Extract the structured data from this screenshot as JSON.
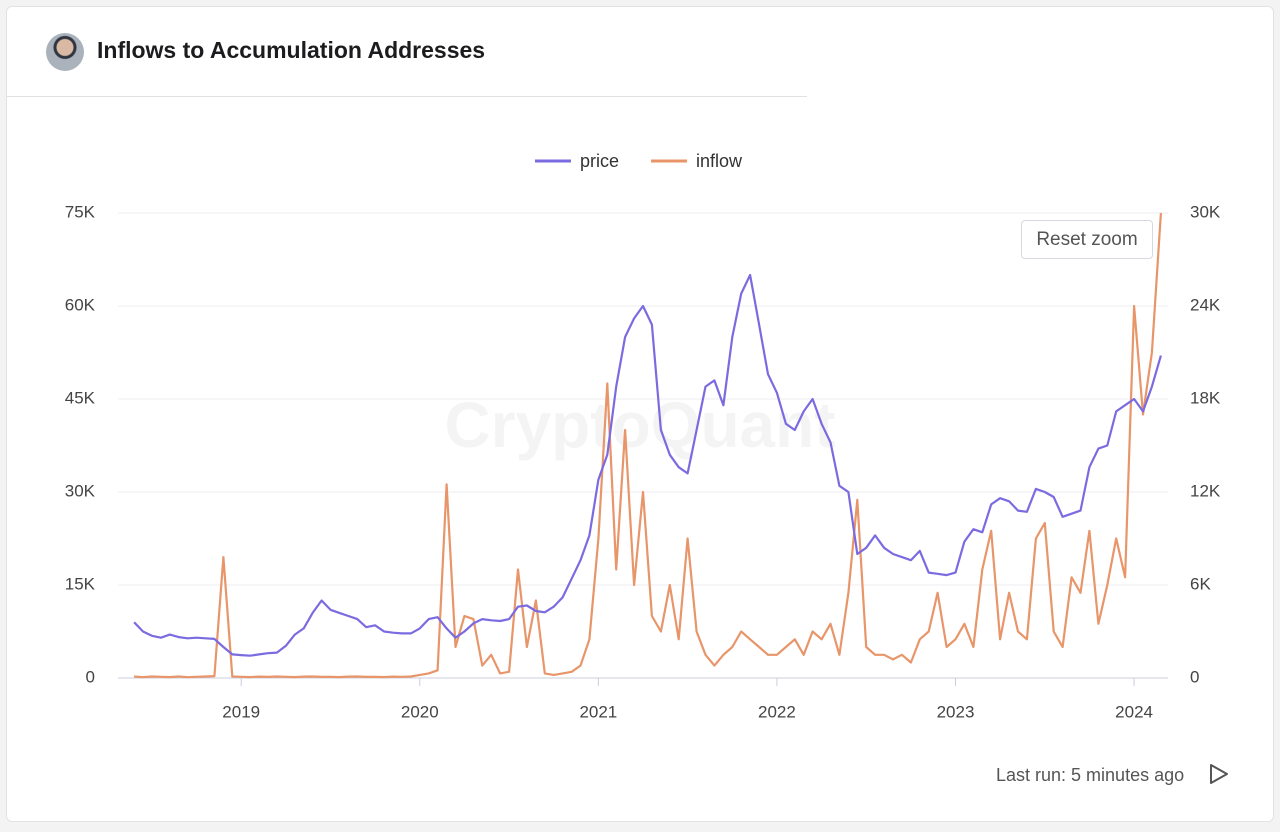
{
  "header": {
    "title": "Inflows to Accumulation Addresses"
  },
  "controls": {
    "reset": "Reset zoom"
  },
  "footer": {
    "last_run": "Last run: 5 minutes ago"
  },
  "watermark": "CryptoQuant",
  "chart_data": {
    "type": "line",
    "x": [
      2018.4,
      2018.45,
      2018.5,
      2018.55,
      2018.6,
      2018.65,
      2018.7,
      2018.75,
      2018.8,
      2018.85,
      2018.9,
      2018.95,
      2019.0,
      2019.05,
      2019.1,
      2019.15,
      2019.2,
      2019.25,
      2019.3,
      2019.35,
      2019.4,
      2019.45,
      2019.5,
      2019.55,
      2019.6,
      2019.65,
      2019.7,
      2019.75,
      2019.8,
      2019.85,
      2019.9,
      2019.95,
      2020.0,
      2020.05,
      2020.1,
      2020.15,
      2020.2,
      2020.25,
      2020.3,
      2020.35,
      2020.4,
      2020.45,
      2020.5,
      2020.55,
      2020.6,
      2020.65,
      2020.7,
      2020.75,
      2020.8,
      2020.85,
      2020.9,
      2020.95,
      2021.0,
      2021.05,
      2021.1,
      2021.15,
      2021.2,
      2021.25,
      2021.3,
      2021.35,
      2021.4,
      2021.45,
      2021.5,
      2021.55,
      2021.6,
      2021.65,
      2021.7,
      2021.75,
      2021.8,
      2021.85,
      2021.9,
      2021.95,
      2022.0,
      2022.05,
      2022.1,
      2022.15,
      2022.2,
      2022.25,
      2022.3,
      2022.35,
      2022.4,
      2022.45,
      2022.5,
      2022.55,
      2022.6,
      2022.65,
      2022.7,
      2022.75,
      2022.8,
      2022.85,
      2022.9,
      2022.95,
      2023.0,
      2023.05,
      2023.1,
      2023.15,
      2023.2,
      2023.25,
      2023.3,
      2023.35,
      2023.4,
      2023.45,
      2023.5,
      2023.55,
      2023.6,
      2023.65,
      2023.7,
      2023.75,
      2023.8,
      2023.85,
      2023.9,
      2023.95,
      2024.0,
      2024.05,
      2024.1,
      2024.15
    ],
    "series": [
      {
        "name": "price",
        "color": "#7b6be0",
        "values": [
          9000,
          7500,
          6800,
          6500,
          7000,
          6600,
          6400,
          6500,
          6400,
          6300,
          5000,
          3800,
          3700,
          3600,
          3800,
          4000,
          4100,
          5200,
          7000,
          8000,
          10500,
          12500,
          11000,
          10500,
          10000,
          9500,
          8200,
          8500,
          7500,
          7300,
          7200,
          7200,
          8000,
          9500,
          9800,
          8000,
          6500,
          7500,
          8800,
          9500,
          9300,
          9200,
          9500,
          11500,
          11700,
          10800,
          10600,
          11500,
          13000,
          16000,
          19000,
          23000,
          32000,
          36000,
          47000,
          55000,
          58000,
          60000,
          57000,
          40000,
          36000,
          34000,
          33000,
          40000,
          47000,
          48000,
          44000,
          55000,
          62000,
          65000,
          57000,
          49000,
          46000,
          41000,
          40000,
          43000,
          45000,
          41000,
          38000,
          31000,
          30000,
          20000,
          21000,
          23000,
          21000,
          20000,
          19500,
          19000,
          20500,
          17000,
          16800,
          16600,
          17000,
          22000,
          24000,
          23500,
          28000,
          29000,
          28500,
          27000,
          26800,
          30500,
          30000,
          29200,
          26000,
          26500,
          27000,
          34000,
          37000,
          37500,
          43000,
          44000,
          45000,
          43000,
          47000,
          52000
        ]
      },
      {
        "name": "inflow",
        "color": "#e8956a",
        "axis": "y2",
        "values": [
          100,
          50,
          100,
          80,
          60,
          100,
          50,
          80,
          100,
          120,
          7800,
          100,
          80,
          60,
          90,
          70,
          100,
          80,
          60,
          90,
          100,
          70,
          80,
          60,
          90,
          100,
          70,
          80,
          60,
          90,
          80,
          100,
          200,
          300,
          500,
          12500,
          2000,
          4000,
          3800,
          800,
          1500,
          300,
          400,
          7000,
          2000,
          5000,
          300,
          200,
          300,
          400,
          800,
          2500,
          9000,
          19000,
          7000,
          16000,
          6000,
          12000,
          4000,
          3000,
          6000,
          2500,
          9000,
          3000,
          1500,
          800,
          1500,
          2000,
          3000,
          2500,
          2000,
          1500,
          1500,
          2000,
          2500,
          1500,
          3000,
          2500,
          3500,
          1500,
          5500,
          11500,
          2000,
          1500,
          1500,
          1200,
          1500,
          1000,
          2500,
          3000,
          5500,
          2000,
          2500,
          3500,
          2000,
          7000,
          9500,
          2500,
          5500,
          3000,
          2500,
          9000,
          10000,
          3000,
          2000,
          6500,
          5500,
          9500,
          3500,
          6000,
          9000,
          6500,
          24000,
          17000,
          21000,
          30000
        ]
      }
    ],
    "xlim": [
      2018.31,
      2024.19
    ],
    "xticks": [
      2019,
      2020,
      2021,
      2022,
      2023,
      2024
    ],
    "ylim": [
      0,
      75000
    ],
    "yticks": [
      0,
      {
        "value": 15000,
        "label": "15K"
      },
      {
        "value": 30000,
        "label": "30K"
      },
      {
        "value": 45000,
        "label": "45K"
      },
      {
        "value": 60000,
        "label": "60K"
      },
      {
        "value": 75000,
        "label": "75K"
      }
    ],
    "y2lim": [
      0,
      30000
    ],
    "y2ticks": [
      0,
      {
        "value": 6000,
        "label": "6K"
      },
      {
        "value": 12000,
        "label": "12K"
      },
      {
        "value": 18000,
        "label": "18K"
      },
      {
        "value": 24000,
        "label": "24K"
      },
      {
        "value": 30000,
        "label": "30K"
      }
    ],
    "grid": true,
    "legend": "top"
  }
}
